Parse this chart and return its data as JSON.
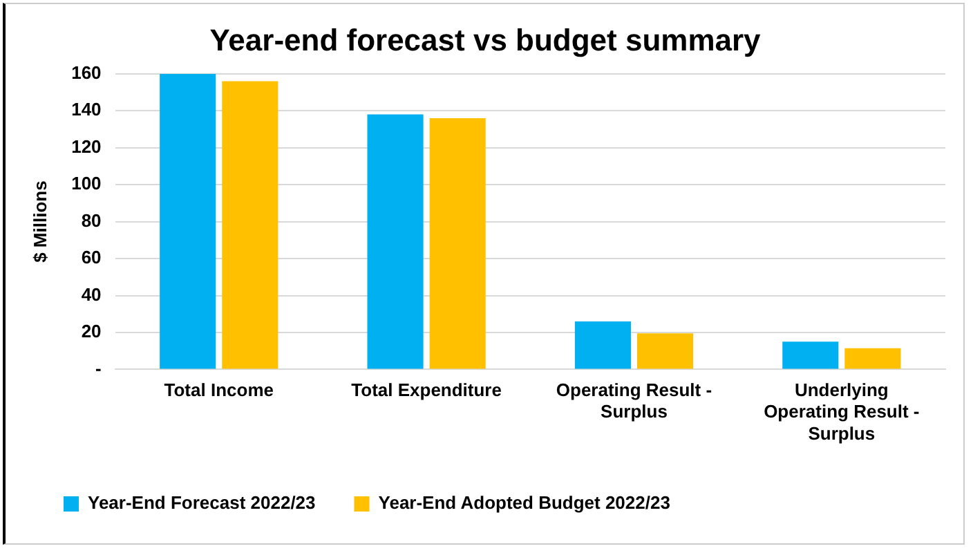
{
  "chart_data": {
    "type": "bar",
    "title": "Year-end forecast vs budget summary",
    "ylabel": "$ Millions",
    "categories": [
      "Total Income",
      "Total Expenditure",
      "Operating Result - Surplus",
      "Underlying Operating Result - Surplus"
    ],
    "series": [
      {
        "name": "Year-End Forecast 2022/23",
        "color": "#00b0f0",
        "values": [
          160,
          138,
          26,
          15
        ]
      },
      {
        "name": "Year-End Adopted Budget 2022/23",
        "color": "#ffc000",
        "values": [
          156,
          136,
          19.5,
          11.5
        ]
      }
    ],
    "ylim": [
      0,
      160
    ],
    "yticks": [
      {
        "value": 0,
        "label": "-"
      },
      20,
      40,
      60,
      80,
      100,
      120,
      140,
      160
    ],
    "grid": "y",
    "legend": "bottom left"
  }
}
